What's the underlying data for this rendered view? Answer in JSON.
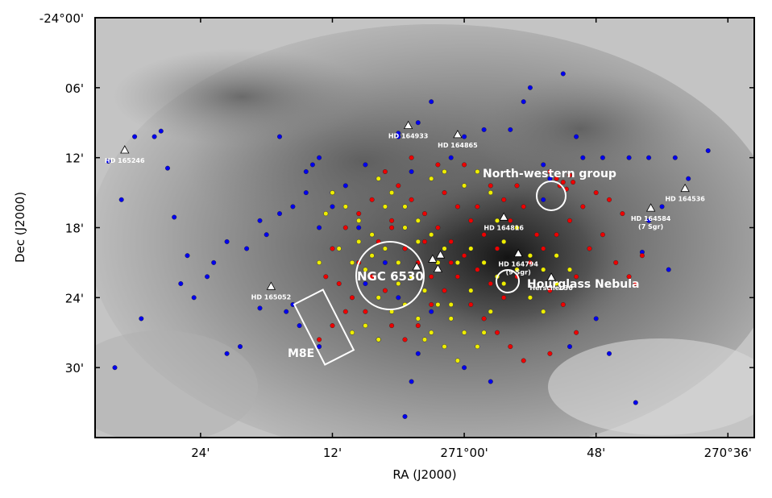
{
  "chart_data": {
    "type": "scatter",
    "title": "",
    "xlabel": "RA (J2000)",
    "ylabel": "Dec (J2000)",
    "x_ticks": [
      "24'",
      "12'",
      "271°00'",
      "48'",
      "270°36'"
    ],
    "y_ticks": [
      "-24°00'",
      "06'",
      "12'",
      "18'",
      "24'",
      "30'"
    ],
    "x_tick_values": [
      271.4,
      271.2,
      271.0,
      270.8,
      270.6
    ],
    "y_tick_values": [
      -24.0,
      -24.1,
      -24.2,
      -24.3,
      -24.4,
      -24.5
    ],
    "xlim": [
      271.56,
      270.56
    ],
    "ylim": [
      -24.0,
      -24.6
    ],
    "series": [
      {
        "color": "#0000ee",
        "points": [
          [
            271.54,
            -24.205
          ],
          [
            271.52,
            -24.26
          ],
          [
            271.5,
            -24.17
          ],
          [
            271.46,
            -24.162
          ],
          [
            271.47,
            -24.17
          ],
          [
            271.45,
            -24.215
          ],
          [
            271.44,
            -24.285
          ],
          [
            271.43,
            -24.38
          ],
          [
            271.42,
            -24.34
          ],
          [
            271.41,
            -24.4
          ],
          [
            271.39,
            -24.37
          ],
          [
            271.38,
            -24.35
          ],
          [
            271.36,
            -24.32
          ],
          [
            271.33,
            -24.33
          ],
          [
            271.31,
            -24.29
          ],
          [
            271.3,
            -24.31
          ],
          [
            271.28,
            -24.28
          ],
          [
            271.26,
            -24.27
          ],
          [
            271.24,
            -24.25
          ],
          [
            271.22,
            -24.3
          ],
          [
            271.2,
            -24.27
          ],
          [
            271.18,
            -24.24
          ],
          [
            271.16,
            -24.3
          ],
          [
            271.27,
            -24.42
          ],
          [
            271.25,
            -24.44
          ],
          [
            271.22,
            -24.47
          ],
          [
            271.34,
            -24.47
          ],
          [
            271.36,
            -24.48
          ],
          [
            271.31,
            -24.415
          ],
          [
            271.53,
            -24.5
          ],
          [
            271.49,
            -24.43
          ],
          [
            271.28,
            -24.17
          ],
          [
            271.22,
            -24.2
          ],
          [
            271.2,
            -24.25
          ],
          [
            271.1,
            -24.17
          ],
          [
            271.1,
            -24.165
          ],
          [
            271.07,
            -24.15
          ],
          [
            271.05,
            -24.12
          ],
          [
            271.0,
            -24.17
          ],
          [
            270.97,
            -24.16
          ],
          [
            270.93,
            -24.16
          ],
          [
            270.91,
            -24.12
          ],
          [
            270.9,
            -24.1
          ],
          [
            270.85,
            -24.08
          ],
          [
            270.83,
            -24.17
          ],
          [
            270.82,
            -24.2
          ],
          [
            270.79,
            -24.2
          ],
          [
            270.75,
            -24.2
          ],
          [
            270.72,
            -24.2
          ],
          [
            270.68,
            -24.2
          ],
          [
            270.66,
            -24.23
          ],
          [
            270.63,
            -24.19
          ],
          [
            270.7,
            -24.27
          ],
          [
            270.72,
            -24.29
          ],
          [
            270.73,
            -24.335
          ],
          [
            270.69,
            -24.36
          ],
          [
            270.8,
            -24.43
          ],
          [
            270.84,
            -24.47
          ],
          [
            270.78,
            -24.48
          ],
          [
            270.74,
            -24.55
          ],
          [
            270.96,
            -24.52
          ],
          [
            271.07,
            -24.48
          ],
          [
            271.08,
            -24.52
          ],
          [
            271.09,
            -24.57
          ],
          [
            271.0,
            -24.5
          ],
          [
            271.13,
            -24.46
          ],
          [
            271.05,
            -24.42
          ],
          [
            271.12,
            -24.35
          ],
          [
            271.26,
            -24.41
          ],
          [
            270.88,
            -24.21
          ],
          [
            270.87,
            -24.23
          ],
          [
            270.88,
            -24.26
          ],
          [
            271.23,
            -24.21
          ],
          [
            271.24,
            -24.22
          ],
          [
            271.15,
            -24.21
          ],
          [
            271.08,
            -24.22
          ],
          [
            271.02,
            -24.2
          ],
          [
            271.1,
            -24.4
          ],
          [
            271.15,
            -24.38
          ]
        ]
      },
      {
        "color": "#ee0000",
        "points": [
          [
            271.12,
            -24.22
          ],
          [
            271.1,
            -24.24
          ],
          [
            271.08,
            -24.26
          ],
          [
            271.06,
            -24.28
          ],
          [
            271.04,
            -24.3
          ],
          [
            271.02,
            -24.32
          ],
          [
            271.0,
            -24.34
          ],
          [
            270.98,
            -24.36
          ],
          [
            270.96,
            -24.38
          ],
          [
            270.94,
            -24.4
          ],
          [
            270.92,
            -24.37
          ],
          [
            270.9,
            -24.35
          ],
          [
            270.88,
            -24.33
          ],
          [
            270.86,
            -24.31
          ],
          [
            270.84,
            -24.29
          ],
          [
            270.82,
            -24.27
          ],
          [
            270.8,
            -24.25
          ],
          [
            270.78,
            -24.26
          ],
          [
            270.76,
            -24.28
          ],
          [
            270.87,
            -24.22
          ],
          [
            270.86,
            -24.23
          ],
          [
            270.85,
            -24.235
          ],
          [
            270.84,
            -24.225
          ],
          [
            270.845,
            -24.245
          ],
          [
            270.855,
            -24.24
          ],
          [
            270.835,
            -24.235
          ],
          [
            271.14,
            -24.26
          ],
          [
            271.16,
            -24.28
          ],
          [
            271.18,
            -24.3
          ],
          [
            271.2,
            -24.33
          ],
          [
            271.16,
            -24.35
          ],
          [
            271.14,
            -24.37
          ],
          [
            271.12,
            -24.39
          ],
          [
            271.18,
            -24.42
          ],
          [
            271.2,
            -24.44
          ],
          [
            271.22,
            -24.46
          ],
          [
            271.17,
            -24.4
          ],
          [
            271.19,
            -24.38
          ],
          [
            271.21,
            -24.37
          ],
          [
            271.15,
            -24.42
          ],
          [
            271.11,
            -24.44
          ],
          [
            271.09,
            -24.46
          ],
          [
            271.07,
            -24.44
          ],
          [
            271.05,
            -24.41
          ],
          [
            271.03,
            -24.39
          ],
          [
            271.01,
            -24.37
          ],
          [
            270.99,
            -24.41
          ],
          [
            270.97,
            -24.43
          ],
          [
            270.95,
            -24.45
          ],
          [
            270.93,
            -24.47
          ],
          [
            270.91,
            -24.49
          ],
          [
            271.13,
            -24.32
          ],
          [
            271.11,
            -24.3
          ],
          [
            271.09,
            -24.33
          ],
          [
            271.07,
            -24.35
          ],
          [
            271.05,
            -24.37
          ],
          [
            271.03,
            -24.25
          ],
          [
            271.01,
            -24.27
          ],
          [
            270.99,
            -24.29
          ],
          [
            270.97,
            -24.31
          ],
          [
            270.95,
            -24.33
          ],
          [
            270.93,
            -24.29
          ],
          [
            270.91,
            -24.27
          ],
          [
            270.89,
            -24.31
          ],
          [
            270.87,
            -24.39
          ],
          [
            270.85,
            -24.41
          ],
          [
            270.83,
            -24.37
          ],
          [
            270.81,
            -24.33
          ],
          [
            270.79,
            -24.31
          ],
          [
            270.77,
            -24.35
          ],
          [
            270.75,
            -24.37
          ],
          [
            270.73,
            -24.34
          ],
          [
            270.74,
            -24.38
          ],
          [
            270.83,
            -24.45
          ],
          [
            270.87,
            -24.48
          ],
          [
            271.0,
            -24.21
          ],
          [
            271.04,
            -24.21
          ],
          [
            271.08,
            -24.2
          ],
          [
            271.11,
            -24.29
          ],
          [
            271.06,
            -24.32
          ],
          [
            271.02,
            -24.35
          ],
          [
            270.98,
            -24.27
          ],
          [
            270.96,
            -24.24
          ],
          [
            270.94,
            -24.26
          ],
          [
            270.92,
            -24.24
          ]
        ]
      },
      {
        "color": "#eeee00",
        "points": [
          [
            271.2,
            -24.25
          ],
          [
            271.18,
            -24.27
          ],
          [
            271.16,
            -24.29
          ],
          [
            271.14,
            -24.31
          ],
          [
            271.12,
            -24.33
          ],
          [
            271.1,
            -24.35
          ],
          [
            271.08,
            -24.37
          ],
          [
            271.06,
            -24.39
          ],
          [
            271.04,
            -24.41
          ],
          [
            271.02,
            -24.43
          ],
          [
            271.0,
            -24.45
          ],
          [
            270.98,
            -24.47
          ],
          [
            270.96,
            -24.42
          ],
          [
            270.94,
            -24.38
          ],
          [
            270.92,
            -24.36
          ],
          [
            270.9,
            -24.34
          ],
          [
            270.88,
            -24.36
          ],
          [
            270.86,
            -24.38
          ],
          [
            270.84,
            -24.36
          ],
          [
            271.13,
            -24.23
          ],
          [
            271.11,
            -24.25
          ],
          [
            271.09,
            -24.27
          ],
          [
            271.07,
            -24.29
          ],
          [
            271.05,
            -24.31
          ],
          [
            271.03,
            -24.33
          ],
          [
            271.01,
            -24.35
          ],
          [
            270.99,
            -24.33
          ],
          [
            270.97,
            -24.35
          ],
          [
            270.95,
            -24.37
          ],
          [
            271.19,
            -24.33
          ],
          [
            271.17,
            -24.35
          ],
          [
            271.15,
            -24.36
          ],
          [
            271.13,
            -24.4
          ],
          [
            271.11,
            -24.42
          ],
          [
            271.09,
            -24.41
          ],
          [
            271.07,
            -24.43
          ],
          [
            271.05,
            -24.45
          ],
          [
            271.03,
            -24.47
          ],
          [
            271.01,
            -24.49
          ],
          [
            271.15,
            -24.44
          ],
          [
            271.13,
            -24.46
          ],
          [
            271.17,
            -24.45
          ],
          [
            271.05,
            -24.23
          ],
          [
            271.03,
            -24.22
          ],
          [
            271.0,
            -24.24
          ],
          [
            270.98,
            -24.22
          ],
          [
            270.96,
            -24.25
          ],
          [
            270.94,
            -24.32
          ],
          [
            270.92,
            -24.3
          ],
          [
            270.9,
            -24.4
          ],
          [
            270.88,
            -24.42
          ],
          [
            270.86,
            -24.34
          ],
          [
            271.09,
            -24.3
          ],
          [
            271.07,
            -24.32
          ],
          [
            271.1,
            -24.38
          ],
          [
            271.14,
            -24.34
          ],
          [
            271.16,
            -24.32
          ],
          [
            270.99,
            -24.39
          ],
          [
            271.02,
            -24.41
          ],
          [
            271.04,
            -24.35
          ],
          [
            271.22,
            -24.35
          ],
          [
            271.21,
            -24.28
          ],
          [
            271.06,
            -24.46
          ],
          [
            270.97,
            -24.45
          ],
          [
            270.95,
            -24.29
          ],
          [
            271.12,
            -24.27
          ]
        ]
      }
    ],
    "star_markers": [
      {
        "label": "HD 165246",
        "ra": 271.515,
        "dec": -24.19
      },
      {
        "label": "HD 164933",
        "ra": 271.085,
        "dec": -24.155
      },
      {
        "label": "HD 164865",
        "ra": 271.01,
        "dec": -24.168
      },
      {
        "label": "HD 164816",
        "ra": 270.94,
        "dec": -24.286
      },
      {
        "label": "HD 164794",
        "sublabel": "(9 Sgr)",
        "ra": 270.918,
        "dec": -24.338
      },
      {
        "label": "Herschel 36",
        "ra": 270.868,
        "dec": -24.372
      },
      {
        "label": "HD 164584",
        "sublabel": "(7 Sgr)",
        "ra": 270.717,
        "dec": -24.273
      },
      {
        "label": "HD 164536",
        "ra": 270.665,
        "dec": -24.245
      },
      {
        "label": "HD 165052",
        "ra": 271.293,
        "dec": -24.385
      },
      {
        "label": "",
        "ra": 271.048,
        "dec": -24.346
      },
      {
        "label": "",
        "ra": 271.036,
        "dec": -24.34
      },
      {
        "label": "",
        "ra": 271.04,
        "dec": -24.36
      },
      {
        "label": "",
        "ra": 271.072,
        "dec": -24.357
      }
    ],
    "annotations": [
      {
        "text": "North-western group"
      },
      {
        "text": "NGC 6530"
      },
      {
        "text": "Hourglass Nebula"
      },
      {
        "text": "M8E"
      }
    ]
  }
}
